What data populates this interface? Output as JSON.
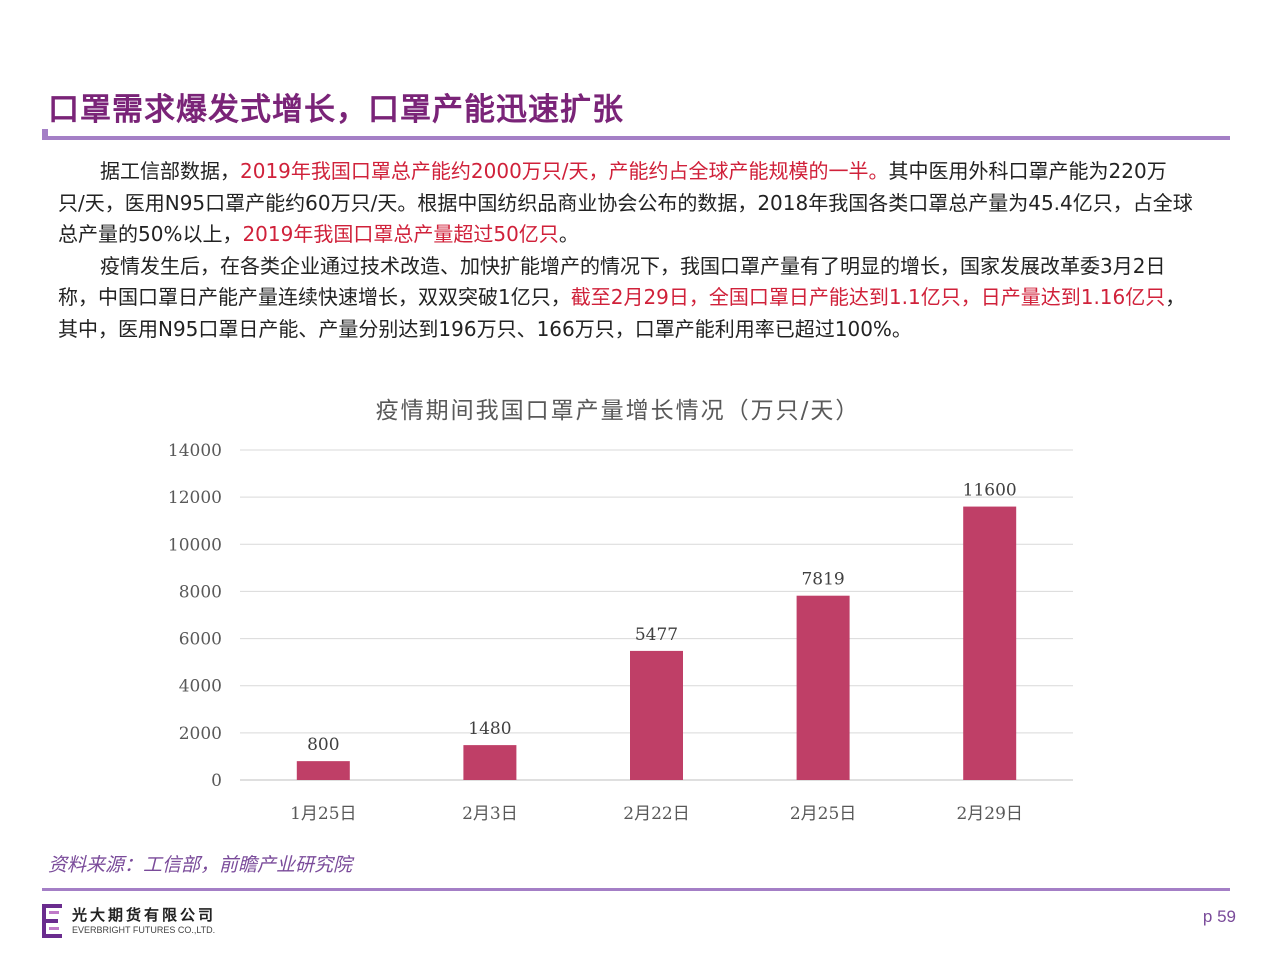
{
  "header": {
    "title": "口罩需求爆发式增长，口罩产能迅速扩张"
  },
  "body": {
    "p1": [
      {
        "text": "据工信部数据，",
        "hl": false
      },
      {
        "text": "2019年我国口罩总产能约2000万只/天，产能约占全球产能规模的一半。",
        "hl": true
      },
      {
        "text": "其中医用外科口罩产能为220万只/天，医用N95口罩产能约60万只/天。根据中国纺织品商业协会公布的数据，2018年我国各类口罩总产量为45.4亿只，占全球总产量的50%以上，",
        "hl": false
      },
      {
        "text": "2019年我国口罩总产量超过50亿只",
        "hl": true
      },
      {
        "text": "。",
        "hl": false
      }
    ],
    "p2": [
      {
        "text": "疫情发生后，在各类企业通过技术改造、加快扩能增产的情况下，我国口罩产量有了明显的增长，国家发展改革委3月2日称，中国口罩日产能产量连续快速增长，双双突破1亿只，",
        "hl": false
      },
      {
        "text": "截至2月29日，全国口罩日产能达到1.1亿只，日产量达到1.16亿只",
        "hl": true
      },
      {
        "text": "，其中，医用N95口罩日产能、产量分别达到196万只、166万只，口罩产能利用率已超过100%。",
        "hl": false
      }
    ]
  },
  "chart_data": {
    "type": "bar",
    "title": "疫情期间我国口罩产量增长情况（万只/天）",
    "categories": [
      "1月25日",
      "2月3日",
      "2月22日",
      "2月25日",
      "2月29日"
    ],
    "values": [
      800,
      1480,
      5477,
      7819,
      11600
    ],
    "ylim": [
      0,
      14000
    ],
    "yticks": [
      0,
      2000,
      4000,
      6000,
      8000,
      10000,
      12000,
      14000
    ],
    "grid": true,
    "bar_color": "#bf3f67",
    "data_labels": true
  },
  "footer": {
    "source": "资料来源：工信部，前瞻产业研究院",
    "company_cn": "光大期货有限公司",
    "company_en": "EVERBRIGHT FUTURES CO.,LTD.",
    "page": "p 59"
  },
  "colors": {
    "accent": "#7a2478",
    "rule": "#a47fc6",
    "highlight": "#d0213a"
  }
}
